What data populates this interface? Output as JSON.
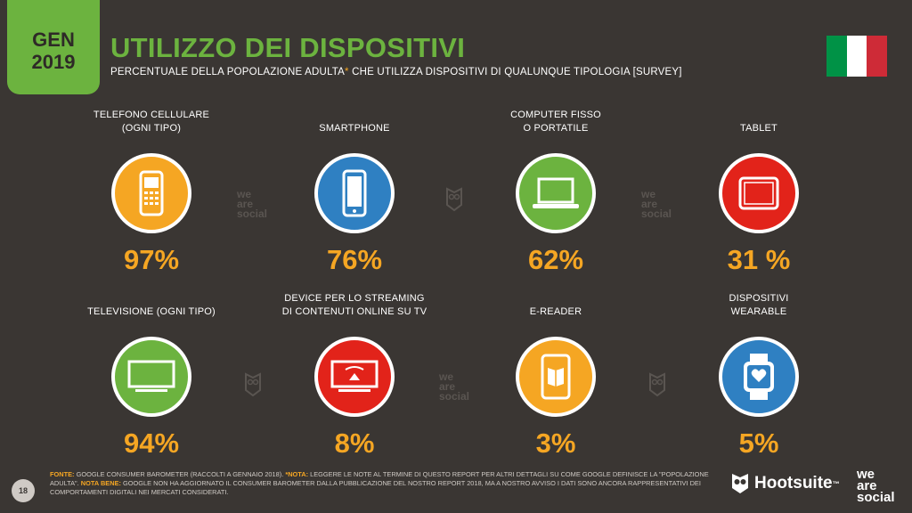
{
  "header": {
    "badge_month": "GEN",
    "badge_year": "2019",
    "title": "UTILIZZO DEI DISPOSITIVI",
    "subtitle_part1": "PERCENTUALE DELLA POPOLAZIONE ADULTA",
    "subtitle_asterisk": "*",
    "subtitle_part2": " CHE UTILIZZA DISPOSITIVI DI QUALUNQUE TIPOLOGIA [SURVEY]"
  },
  "colors": {
    "background": "#3a3633",
    "accent_green": "#6cb33f",
    "accent_orange": "#f5a623",
    "flag": [
      "#009246",
      "#ffffff",
      "#ce2b37"
    ]
  },
  "chart_data": {
    "type": "table",
    "unit": "%",
    "items": [
      {
        "label_line1": "TELEFONO CELLULARE",
        "label_line2": "(OGNI TIPO)",
        "value": 97,
        "display": "97%",
        "icon": "feature-phone-icon",
        "color": "#f5a623"
      },
      {
        "label_line1": "",
        "label_line2": "SMARTPHONE",
        "value": 76,
        "display": "76%",
        "icon": "smartphone-icon",
        "color": "#2f80c2"
      },
      {
        "label_line1": "COMPUTER FISSO",
        "label_line2": "O PORTATILE",
        "value": 62,
        "display": "62%",
        "icon": "laptop-icon",
        "color": "#6cb33f"
      },
      {
        "label_line1": "",
        "label_line2": "TABLET",
        "value": 31,
        "display": "31 %",
        "icon": "tablet-icon",
        "color": "#e2231a"
      },
      {
        "label_line1": "",
        "label_line2": "TELEVISIONE (OGNI TIPO)",
        "value": 94,
        "display": "94%",
        "icon": "television-icon",
        "color": "#6cb33f"
      },
      {
        "label_line1": "DEVICE PER LO STREAMING",
        "label_line2": "DI CONTENUTI ONLINE SU TV",
        "value": 8,
        "display": "8%",
        "icon": "streaming-device-icon",
        "color": "#e2231a"
      },
      {
        "label_line1": "",
        "label_line2": "E-READER",
        "value": 3,
        "display": "3%",
        "icon": "e-reader-icon",
        "color": "#f5a623"
      },
      {
        "label_line1": "DISPOSITIVI",
        "label_line2": "WEARABLE",
        "value": 5,
        "display": "5%",
        "icon": "smartwatch-icon",
        "color": "#2f80c2"
      }
    ]
  },
  "watermark": {
    "line1": "we",
    "line2": "are",
    "line3": "social"
  },
  "footer": {
    "page_number": "18",
    "source_label": "FONTE:",
    "source_text": " GOOGLE CONSUMER BAROMETER (RACCOLTI A GENNAIO 2018). ",
    "note_label": "*NOTA:",
    "note_text": " LEGGERE LE NOTE AL TERMINE DI QUESTO REPORT PER ALTRI DETTAGLI SU COME GOOGLE DEFINISCE LA \"POPOLAZIONE ADULTA\". ",
    "notabene_label": "NOTA BENE:",
    "notabene_text": " GOOGLE NON HA AGGIORNATO IL CONSUMER BAROMETER DALLA PUBBLICAZIONE DEL NOSTRO REPORT 2018, MA A NOSTRO AVVISO I DATI SONO ANCORA RAPPRESENTATIVI DEI COMPORTAMENTI DIGITALI NEI MERCATI CONSIDERATI."
  },
  "brand": {
    "hootsuite": "Hootsuite",
    "tm": "™",
    "was_line1": "we",
    "was_line2": "are",
    "was_line3": "social"
  }
}
